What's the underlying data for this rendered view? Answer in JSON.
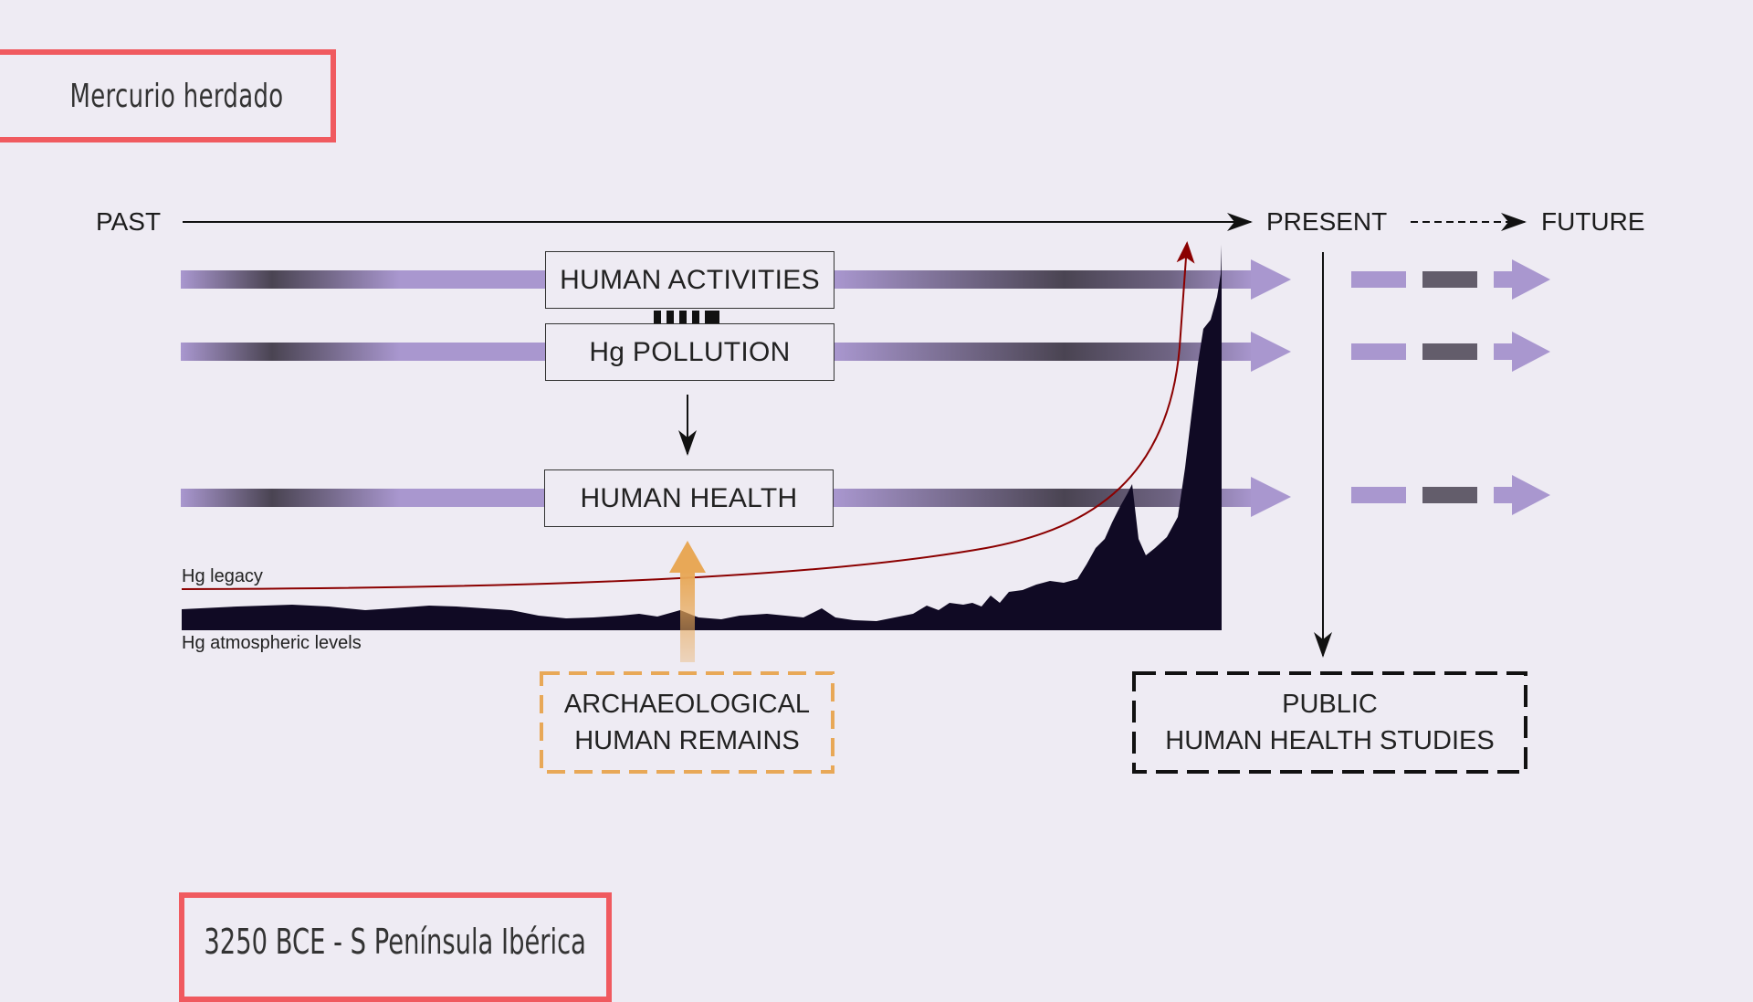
{
  "slide": {
    "title": "Mercurio herdado",
    "caption": "3250 BCE - S Península Ibérica",
    "accent_color": "#f05a5f"
  },
  "diagram": {
    "timeline": {
      "past": "PAST",
      "present": "PRESENT",
      "future": "FUTURE"
    },
    "boxes": {
      "activities": "HUMAN ACTIVITIES",
      "pollution": "Hg POLLUTION",
      "health": "HUMAN HEALTH"
    },
    "remains": {
      "line1": "ARCHAEOLOGICAL",
      "line2": "HUMAN REMAINS",
      "color": "#e8a857"
    },
    "studies": {
      "line1": "PUBLIC",
      "line2": "HUMAN HEALTH STUDIES"
    },
    "curve_labels": {
      "legacy": "Hg legacy",
      "atmospheric": "Hg atmospheric levels"
    },
    "colors": {
      "stream": "#a997cf",
      "stream_dark": "#4a4452",
      "legacy_curve": "#8b0000",
      "atmospheric_fill": "#100a24"
    }
  }
}
